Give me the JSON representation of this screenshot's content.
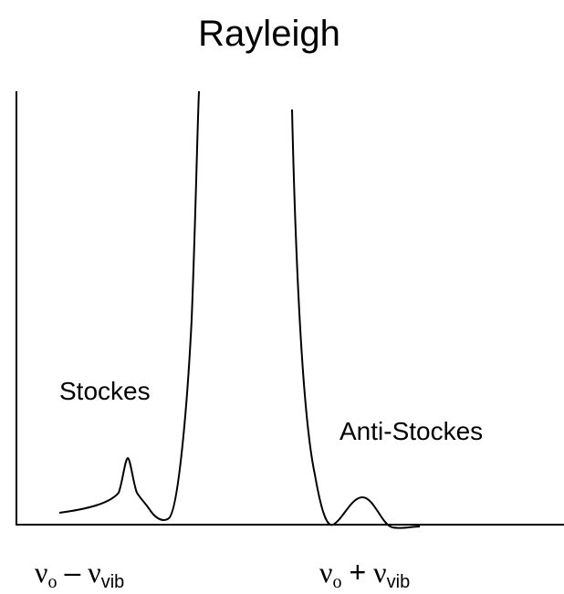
{
  "title": "Rayleigh",
  "labels": {
    "stokes": "Stockes",
    "anti_stokes": "Anti-Stockes"
  },
  "x_labels": [
    {
      "parts": [
        "ν",
        "o",
        "–",
        "ν",
        "vib"
      ]
    },
    {
      "parts": [
        "ν",
        "o",
        "+",
        "ν",
        "vib"
      ]
    }
  ]
}
